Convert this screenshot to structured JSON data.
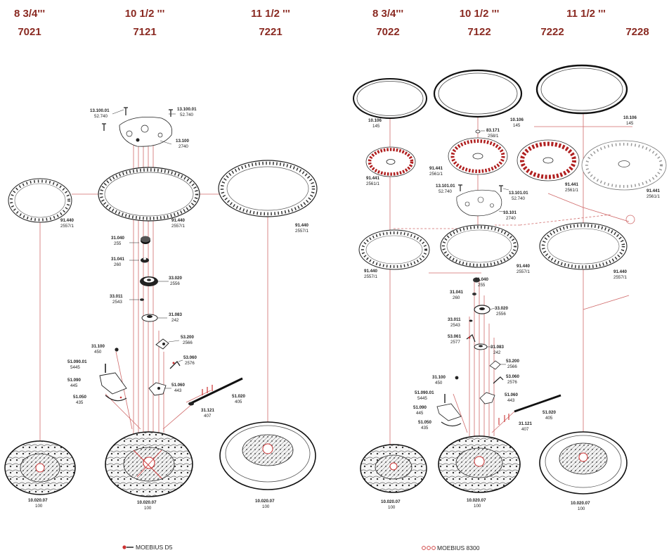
{
  "headers": {
    "left": [
      {
        "size": "8 3/4'''",
        "calibre": "7021"
      },
      {
        "size": "10 1/2 '''",
        "calibre": "7121"
      },
      {
        "size": "11 1/2 '''",
        "calibre": "7221"
      }
    ],
    "right": [
      {
        "size": "8 3/4'''",
        "calibre": "7022"
      },
      {
        "size": "10 1/2 '''",
        "calibre": "7122"
      },
      {
        "size": "11 1/2 '''",
        "calibre_a": "7222",
        "calibre_b": "7228"
      }
    ]
  },
  "parts_left": {
    "p13100_01_a": {
      "code": "13.100.01",
      "ref": "52.740"
    },
    "p13100_01_b": {
      "code": "13.100.01",
      "ref": "52.740"
    },
    "p13100": {
      "code": "13.100",
      "ref": "2740"
    },
    "p91440_a": {
      "code": "91.440",
      "ref": "2557/1"
    },
    "p91440_b": {
      "code": "91.440",
      "ref": "2557/1"
    },
    "p91440_c": {
      "code": "91.440",
      "ref": "2557/1"
    },
    "p31040": {
      "code": "31.040",
      "ref": "255"
    },
    "p31041": {
      "code": "31.041",
      "ref": "260"
    },
    "p33020": {
      "code": "33.020",
      "ref": "2556"
    },
    "p33011": {
      "code": "33.011",
      "ref": "2543"
    },
    "p31083": {
      "code": "31.083",
      "ref": "242"
    },
    "p53200": {
      "code": "53.200",
      "ref": "2566"
    },
    "p53060": {
      "code": "53.060",
      "ref": "2576"
    },
    "p31100": {
      "code": "31.100",
      "ref": "450"
    },
    "p51090_01": {
      "code": "51.090.01",
      "ref": "5445"
    },
    "p51090": {
      "code": "51.090",
      "ref": "445"
    },
    "p51050": {
      "code": "51.050",
      "ref": "435"
    },
    "p51060": {
      "code": "51.060",
      "ref": "443"
    },
    "p51020": {
      "code": "51.020",
      "ref": "405"
    },
    "p31121": {
      "code": "31.121",
      "ref": "407"
    },
    "base_a": {
      "code": "10.020.07",
      "ref": "100"
    },
    "base_b": {
      "code": "10.020.07",
      "ref": "100"
    },
    "base_c": {
      "code": "10.020.07",
      "ref": "100"
    }
  },
  "parts_right": {
    "p10106_a": {
      "code": "10.106",
      "ref": "145"
    },
    "p10106_b": {
      "code": "10.106",
      "ref": "145"
    },
    "p10106_c": {
      "code": "10.106",
      "ref": "145"
    },
    "p83171": {
      "code": "83.171",
      "ref": "258/1"
    },
    "p91441_a": {
      "code": "91.441",
      "ref": "2561/1"
    },
    "p91441_b": {
      "code": "91.441",
      "ref": "2561/1"
    },
    "p91441_c": {
      "code": "91.441",
      "ref": "2561/1"
    },
    "p91441_d": {
      "code": "91.441",
      "ref": "2561/1"
    },
    "p13101_01_a": {
      "code": "13.101.01",
      "ref": "52.740"
    },
    "p13101_01_b": {
      "code": "13.101.01",
      "ref": "52.740"
    },
    "p13101": {
      "code": "13.101",
      "ref": "2740"
    },
    "p91440_a": {
      "code": "91.440",
      "ref": "2557/1"
    },
    "p91440_b": {
      "code": "91.440",
      "ref": "2557/1"
    },
    "p91440_c": {
      "code": "91.440",
      "ref": "2557/1"
    },
    "p31040": {
      "code": "31.040",
      "ref": "255"
    },
    "p31041": {
      "code": "31.041",
      "ref": "260"
    },
    "p33020": {
      "code": "33.020",
      "ref": "2556"
    },
    "p33011": {
      "code": "33.011",
      "ref": "2543"
    },
    "p53061": {
      "code": "53.061",
      "ref": "2577"
    },
    "p31083": {
      "code": "31.083",
      "ref": "242"
    },
    "p53200": {
      "code": "53.200",
      "ref": "2566"
    },
    "p53060": {
      "code": "53.060",
      "ref": "2576"
    },
    "p31100": {
      "code": "31.100",
      "ref": "450"
    },
    "p51090_01": {
      "code": "51.090.01",
      "ref": "5445"
    },
    "p51090": {
      "code": "51.090",
      "ref": "445"
    },
    "p51050": {
      "code": "51.050",
      "ref": "435"
    },
    "p51060": {
      "code": "51.060",
      "ref": "443"
    },
    "p51020": {
      "code": "51.020",
      "ref": "405"
    },
    "p31121": {
      "code": "31.121",
      "ref": "407"
    },
    "base_a": {
      "code": "10.020.07",
      "ref": "100"
    },
    "base_b": {
      "code": "10.020.07",
      "ref": "100"
    },
    "base_c": {
      "code": "10.020.07",
      "ref": "100"
    }
  },
  "legend": {
    "left": "MOEBIUS D5",
    "right": "MOEBIUS 8300"
  },
  "colors": {
    "heading": "#8a2a22",
    "axis": "#d06a6a",
    "ink": "#222222"
  }
}
